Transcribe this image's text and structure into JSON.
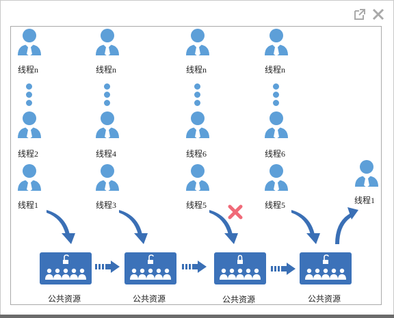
{
  "thread_columns": [
    {
      "labels": [
        "线程n",
        "线程2",
        "线程1"
      ]
    },
    {
      "labels": [
        "线程n",
        "线程4",
        "线程3"
      ]
    },
    {
      "labels": [
        "线程n",
        "线程6",
        "线程5"
      ]
    },
    {
      "labels": [
        "线程n",
        "线程6",
        "线程5"
      ]
    }
  ],
  "released_thread": {
    "label": "线程1"
  },
  "resources": [
    {
      "label": "公共资源",
      "lock_state": "unlocked"
    },
    {
      "label": "公共资源",
      "lock_state": "unlocked"
    },
    {
      "label": "公共资源",
      "lock_state": "locked"
    },
    {
      "label": "公共资源",
      "lock_state": "unlocked"
    }
  ],
  "icons": {
    "top_bar": [
      "external-link-icon",
      "close-icon"
    ],
    "thread": "user-icon",
    "blocked": "cross-icon",
    "flow": "curved-arrow-icon",
    "transfer": "striped-arrow-icon"
  },
  "colors": {
    "person": "#5d9fd8",
    "resource": "#3c72b9",
    "arrow": "#3a6fb5",
    "blocked": "#f06a78"
  }
}
